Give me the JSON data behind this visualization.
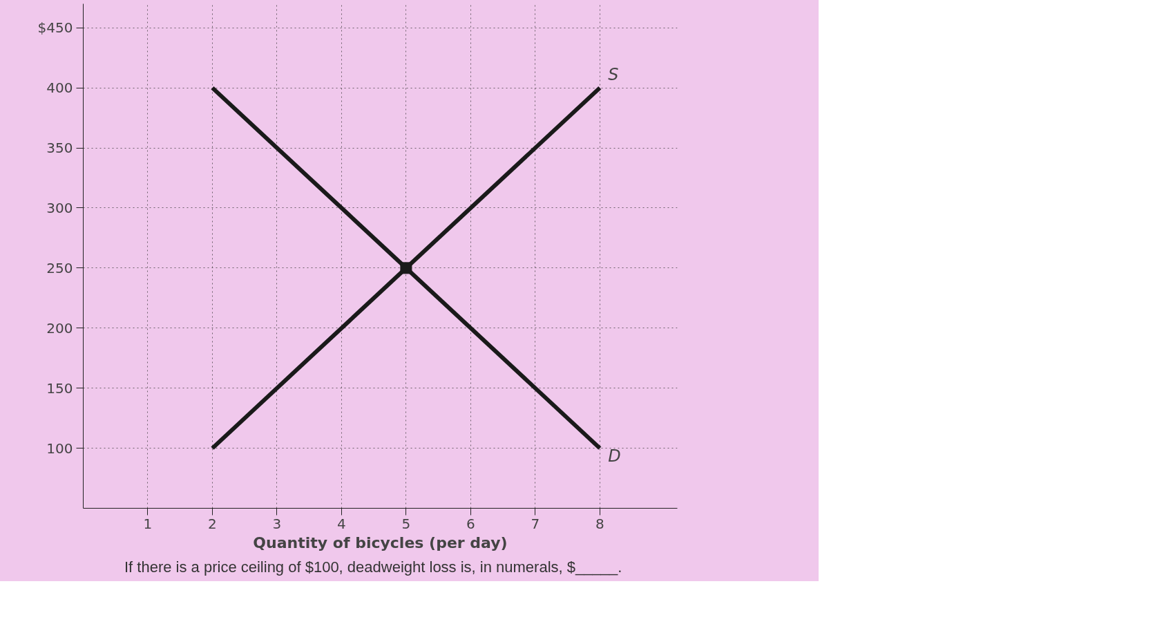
{
  "chart_data": {
    "type": "line",
    "xlabel": "Quantity of bicycles (per day)",
    "annotations": [
      "If there is a price ceiling of $100, deadweight loss is, in numerals, $_____."
    ],
    "series": [
      {
        "name": "S",
        "color": "#1a1a1a",
        "x": [
          2,
          8
        ],
        "values": [
          100,
          400
        ]
      },
      {
        "name": "D",
        "color": "#1a1a1a",
        "x": [
          2,
          8
        ],
        "values": [
          400,
          100
        ]
      },
      {
        "type": "scatter",
        "color": "#1a1a1a",
        "x": [
          5
        ],
        "values": [
          250
        ],
        "marker": "square"
      }
    ],
    "xlim": [
      0,
      9.2
    ],
    "xticks": [
      1,
      2,
      3,
      4,
      5,
      6,
      7,
      8
    ],
    "ylim": [
      50,
      470
    ],
    "yticks": [
      100,
      150,
      200,
      250,
      300,
      350,
      400,
      {
        "value": 450,
        "label": "$450"
      }
    ],
    "grid": true,
    "line_style": "solid"
  }
}
